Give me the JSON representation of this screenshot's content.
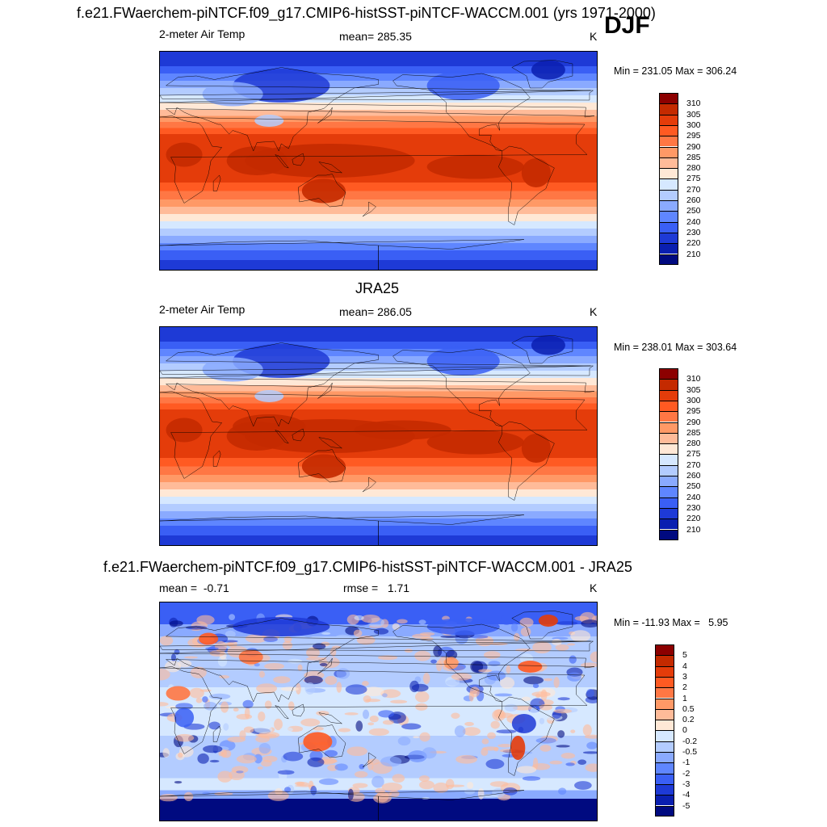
{
  "season": "DJF",
  "panels": [
    {
      "title": "f.e21.FWaerchem-piNTCF.f09_g17.CMIP6-histSST-piNTCF-WACCM.001 (yrs 1971-2000)",
      "left_label": "2-meter Air Temp",
      "center_label": "mean= 285.35",
      "units": "K",
      "minmax": "Min = 231.05 Max = 306.24",
      "field": "model"
    },
    {
      "title": "JRA25",
      "left_label": "2-meter Air Temp",
      "center_label": "mean= 286.05",
      "units": "K",
      "minmax": "Min = 238.01 Max = 303.64",
      "field": "obs"
    },
    {
      "title": "f.e21.FWaerchem-piNTCF.f09_g17.CMIP6-histSST-piNTCF-WACCM.001 - JRA25",
      "left_label": "mean =  -0.71",
      "center_label": "rmse =   1.71",
      "units": "K",
      "minmax": "Min = -11.93 Max =   5.95",
      "field": "diff"
    }
  ],
  "colorbars": {
    "abs": {
      "labels": [
        "310",
        "305",
        "300",
        "295",
        "290",
        "285",
        "280",
        "275",
        "270",
        "260",
        "250",
        "240",
        "230",
        "220",
        "210"
      ],
      "colors": [
        "#8c0000",
        "#c42a00",
        "#e43c0a",
        "#ff5a22",
        "#ff7744",
        "#ff9966",
        "#ffbb99",
        "#ffe8d6",
        "#d6e8ff",
        "#b3ccff",
        "#8aaaff",
        "#5f86ff",
        "#3a5ff5",
        "#1e3ad6",
        "#0a1fb0",
        "#000a80"
      ]
    },
    "diff": {
      "labels": [
        "5",
        "4",
        "3",
        "2",
        "1",
        "0.5",
        "0.2",
        "0",
        "-0.2",
        "-0.5",
        "-1",
        "-2",
        "-3",
        "-4",
        "-5"
      ],
      "colors": [
        "#8c0000",
        "#c42a00",
        "#e43c0a",
        "#ff5a22",
        "#ff7744",
        "#ff9966",
        "#ffbb99",
        "#ffe8d6",
        "#d6e8ff",
        "#b3ccff",
        "#8aaaff",
        "#5f86ff",
        "#3a5ff5",
        "#1e3ad6",
        "#0a1fb0",
        "#000a80"
      ]
    }
  }
}
